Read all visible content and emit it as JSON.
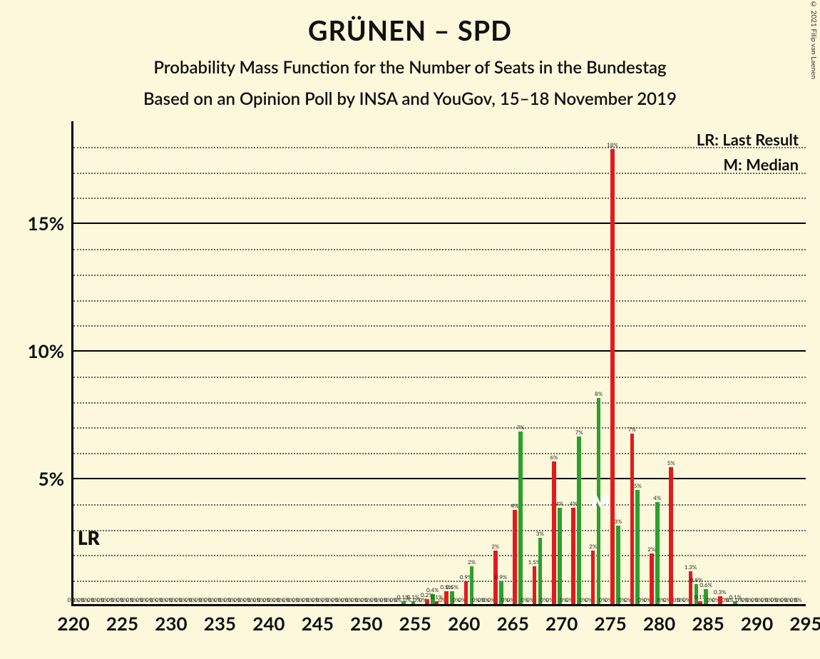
{
  "copyright": "© 2021 Filip van Laenen",
  "title": "GRÜNEN – SPD",
  "subtitle1": "Probability Mass Function for the Number of Seats in the Bundestag",
  "subtitle2": "Based on an Opinion Poll by INSA and YouGov, 15–18 November 2019",
  "legend_lr": "LR: Last Result",
  "legend_m": "M: Median",
  "lr_text": "LR",
  "m_text": "M",
  "lr_seat": 220,
  "m_seat": 274,
  "colors": {
    "background": "#fbf8db",
    "green": "#2ca02c",
    "red": "#e31a1c",
    "axis": "#000000"
  },
  "y_axis": {
    "max": 19,
    "major_ticks": [
      5,
      10,
      15
    ],
    "minor_step": 1
  },
  "x_axis": {
    "min": 220,
    "max": 295,
    "tick_step": 5
  },
  "bars": [
    {
      "seat": 220,
      "g": 0,
      "r": 0,
      "gl": "0%",
      "rl": "0%"
    },
    {
      "seat": 221,
      "g": 0,
      "r": 0,
      "gl": "0%",
      "rl": "0%"
    },
    {
      "seat": 222,
      "g": 0,
      "r": 0,
      "gl": "0%",
      "rl": "0%"
    },
    {
      "seat": 223,
      "g": 0,
      "r": 0,
      "gl": "0%",
      "rl": "0%"
    },
    {
      "seat": 224,
      "g": 0,
      "r": 0,
      "gl": "0%",
      "rl": "0%"
    },
    {
      "seat": 225,
      "g": 0,
      "r": 0,
      "gl": "0%",
      "rl": "0%"
    },
    {
      "seat": 226,
      "g": 0,
      "r": 0,
      "gl": "0%",
      "rl": "0%"
    },
    {
      "seat": 227,
      "g": 0,
      "r": 0,
      "gl": "0%",
      "rl": "0%"
    },
    {
      "seat": 228,
      "g": 0,
      "r": 0,
      "gl": "0%",
      "rl": "0%"
    },
    {
      "seat": 229,
      "g": 0,
      "r": 0,
      "gl": "0%",
      "rl": "0%"
    },
    {
      "seat": 230,
      "g": 0,
      "r": 0,
      "gl": "0%",
      "rl": "0%"
    },
    {
      "seat": 231,
      "g": 0,
      "r": 0,
      "gl": "0%",
      "rl": "0%"
    },
    {
      "seat": 232,
      "g": 0,
      "r": 0,
      "gl": "0%",
      "rl": "0%"
    },
    {
      "seat": 233,
      "g": 0,
      "r": 0,
      "gl": "0%",
      "rl": "0%"
    },
    {
      "seat": 234,
      "g": 0,
      "r": 0,
      "gl": "0%",
      "rl": "0%"
    },
    {
      "seat": 235,
      "g": 0,
      "r": 0,
      "gl": "0%",
      "rl": "0%"
    },
    {
      "seat": 236,
      "g": 0,
      "r": 0,
      "gl": "0%",
      "rl": "0%"
    },
    {
      "seat": 237,
      "g": 0,
      "r": 0,
      "gl": "0%",
      "rl": "0%"
    },
    {
      "seat": 238,
      "g": 0,
      "r": 0,
      "gl": "0%",
      "rl": "0%"
    },
    {
      "seat": 239,
      "g": 0,
      "r": 0,
      "gl": "0%",
      "rl": "0%"
    },
    {
      "seat": 240,
      "g": 0,
      "r": 0,
      "gl": "0%",
      "rl": "0%"
    },
    {
      "seat": 241,
      "g": 0,
      "r": 0,
      "gl": "0%",
      "rl": "0%"
    },
    {
      "seat": 242,
      "g": 0,
      "r": 0,
      "gl": "0%",
      "rl": "0%"
    },
    {
      "seat": 243,
      "g": 0,
      "r": 0,
      "gl": "0%",
      "rl": "0%"
    },
    {
      "seat": 244,
      "g": 0,
      "r": 0,
      "gl": "0%",
      "rl": "0%"
    },
    {
      "seat": 245,
      "g": 0,
      "r": 0,
      "gl": "0%",
      "rl": "0%"
    },
    {
      "seat": 246,
      "g": 0,
      "r": 0,
      "gl": "0%",
      "rl": "0%"
    },
    {
      "seat": 247,
      "g": 0,
      "r": 0,
      "gl": "0%",
      "rl": "0%"
    },
    {
      "seat": 248,
      "g": 0,
      "r": 0,
      "gl": "0%",
      "rl": "0%"
    },
    {
      "seat": 249,
      "g": 0,
      "r": 0,
      "gl": "0%",
      "rl": "0%"
    },
    {
      "seat": 250,
      "g": 0,
      "r": 0,
      "gl": "0%",
      "rl": "0%"
    },
    {
      "seat": 251,
      "g": 0,
      "r": 0,
      "gl": "0%",
      "rl": "0%"
    },
    {
      "seat": 252,
      "g": 0,
      "r": 0,
      "gl": "0%",
      "rl": "0%"
    },
    {
      "seat": 253,
      "g": 0,
      "r": 0,
      "gl": "0%",
      "rl": "0%"
    },
    {
      "seat": 254,
      "g": 0.1,
      "r": 0,
      "gl": "0.1%",
      "rl": "0%"
    },
    {
      "seat": 255,
      "g": 0.1,
      "r": 0,
      "gl": "0.1%",
      "rl": "0%"
    },
    {
      "seat": 256,
      "g": 0,
      "r": 0.2,
      "gl": "0%",
      "rl": "0.2%"
    },
    {
      "seat": 257,
      "g": 0.4,
      "r": 0.1,
      "gl": "0.4%",
      "rl": "0.1%"
    },
    {
      "seat": 258,
      "g": 0,
      "r": 0.5,
      "gl": "0%",
      "rl": "0.5%"
    },
    {
      "seat": 259,
      "g": 0.5,
      "r": 0,
      "gl": "0.5%",
      "rl": "0%"
    },
    {
      "seat": 260,
      "g": 0,
      "r": 0.9,
      "gl": "0%",
      "rl": "0.9%"
    },
    {
      "seat": 261,
      "g": 1.5,
      "r": 0,
      "gl": "2%",
      "rl": "0%"
    },
    {
      "seat": 262,
      "g": 0,
      "r": 0,
      "gl": "0%",
      "rl": "0%"
    },
    {
      "seat": 263,
      "g": 0,
      "r": 2.1,
      "gl": "0%",
      "rl": "2%"
    },
    {
      "seat": 264,
      "g": 0.9,
      "r": 0,
      "gl": "0.9%",
      "rl": "0%"
    },
    {
      "seat": 265,
      "g": 0,
      "r": 3.7,
      "gl": "0%",
      "rl": "4%"
    },
    {
      "seat": 266,
      "g": 6.8,
      "r": 0,
      "gl": "7%",
      "rl": "0%"
    },
    {
      "seat": 267,
      "g": 0,
      "r": 1.5,
      "gl": "0%",
      "rl": "1.5%"
    },
    {
      "seat": 268,
      "g": 2.6,
      "r": 0,
      "gl": "3%",
      "rl": "0%"
    },
    {
      "seat": 269,
      "g": 0,
      "r": 5.6,
      "gl": "0%",
      "rl": "6%"
    },
    {
      "seat": 270,
      "g": 3.8,
      "r": 0,
      "gl": "4%",
      "rl": "0%"
    },
    {
      "seat": 271,
      "g": 0,
      "r": 3.8,
      "gl": "0%",
      "rl": "4%"
    },
    {
      "seat": 272,
      "g": 6.6,
      "r": 0,
      "gl": "7%",
      "rl": "0%"
    },
    {
      "seat": 273,
      "g": 0,
      "r": 2.1,
      "gl": "0%",
      "rl": "2%"
    },
    {
      "seat": 274,
      "g": 8.1,
      "r": 0,
      "gl": "8%",
      "rl": "0%"
    },
    {
      "seat": 275,
      "g": 0,
      "r": 17.9,
      "gl": "0%",
      "rl": "18%"
    },
    {
      "seat": 276,
      "g": 3.1,
      "r": 0,
      "gl": "3%",
      "rl": "0%"
    },
    {
      "seat": 277,
      "g": 0,
      "r": 6.7,
      "gl": "0%",
      "rl": "7%"
    },
    {
      "seat": 278,
      "g": 4.5,
      "r": 0,
      "gl": "5%",
      "rl": "0%"
    },
    {
      "seat": 279,
      "g": 0,
      "r": 2.0,
      "gl": "0%",
      "rl": "2%"
    },
    {
      "seat": 280,
      "g": 4.0,
      "r": 0,
      "gl": "4%",
      "rl": "0%"
    },
    {
      "seat": 281,
      "g": 0,
      "r": 5.4,
      "gl": "0%",
      "rl": "5%"
    },
    {
      "seat": 282,
      "g": 0,
      "r": 0,
      "gl": "0%",
      "rl": "0%"
    },
    {
      "seat": 283,
      "g": 0,
      "r": 1.3,
      "gl": "0%",
      "rl": "1.3%"
    },
    {
      "seat": 284,
      "g": 0.8,
      "r": 0.1,
      "gl": "0.8%",
      "rl": "0.1%"
    },
    {
      "seat": 285,
      "g": 0.6,
      "r": 0,
      "gl": "0.6%",
      "rl": "0%"
    },
    {
      "seat": 286,
      "g": 0,
      "r": 0.3,
      "gl": "0%",
      "rl": "0.3%"
    },
    {
      "seat": 287,
      "g": 0,
      "r": 0,
      "gl": "0%",
      "rl": "0%"
    },
    {
      "seat": 288,
      "g": 0.1,
      "r": 0,
      "gl": "0.1%",
      "rl": "0%"
    },
    {
      "seat": 289,
      "g": 0,
      "r": 0,
      "gl": "0%",
      "rl": "0%"
    },
    {
      "seat": 290,
      "g": 0,
      "r": 0,
      "gl": "0%",
      "rl": "0%"
    },
    {
      "seat": 291,
      "g": 0,
      "r": 0,
      "gl": "0%",
      "rl": "0%"
    },
    {
      "seat": 292,
      "g": 0,
      "r": 0,
      "gl": "0%",
      "rl": "0%"
    },
    {
      "seat": 293,
      "g": 0,
      "r": 0,
      "gl": "0%",
      "rl": "0%"
    },
    {
      "seat": 294,
      "g": 0,
      "r": 0,
      "gl": "0%",
      "rl": "0%"
    }
  ]
}
